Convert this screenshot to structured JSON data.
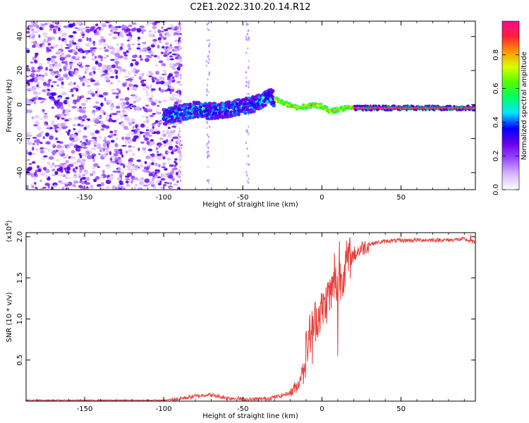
{
  "title": "C2E1.2022.310.20.14.R12",
  "chart_data": [
    {
      "type": "heatmap",
      "xlabel": "Height of straight line (km)",
      "ylabel": "Frequency (Hz)",
      "xlim": [
        -187,
        97
      ],
      "ylim": [
        -50,
        49
      ],
      "xticks": [
        -150,
        -100,
        -50,
        0,
        50
      ],
      "yticks": [
        -40,
        -20,
        0,
        20,
        40
      ],
      "colorbar": {
        "label": "Normalized spectral amplitude",
        "range": [
          0.0,
          1.0
        ],
        "ticks": [
          0.0,
          0.2,
          0.4,
          0.6,
          0.8
        ],
        "tick_labels": [
          "0.0",
          "0.2",
          "0.4",
          "0.6",
          "0.8"
        ],
        "colormap": [
          "#ffffff",
          "#d8b8ff",
          "#9a4dff",
          "#6a00e8",
          "#0000ff",
          "#00e5ff",
          "#00ff66",
          "#4dff00",
          "#d8ff00",
          "#ff9900",
          "#ff1e3c",
          "#ff0a8c"
        ]
      },
      "signal_trace": [
        {
          "x": -98,
          "y": -7
        },
        {
          "x": -90,
          "y": -5
        },
        {
          "x": -80,
          "y": -3
        },
        {
          "x": -70,
          "y": -4
        },
        {
          "x": -60,
          "y": -3
        },
        {
          "x": -50,
          "y": -1
        },
        {
          "x": -40,
          "y": 1
        },
        {
          "x": -33,
          "y": 5
        },
        {
          "x": -25,
          "y": 1
        },
        {
          "x": -15,
          "y": -2
        },
        {
          "x": -5,
          "y": 0
        },
        {
          "x": 0,
          "y": -1
        },
        {
          "x": 5,
          "y": -4
        },
        {
          "x": 15,
          "y": -2
        },
        {
          "x": 50,
          "y": -2
        },
        {
          "x": 95,
          "y": -2
        }
      ],
      "noise_region_x": [
        -187,
        -95
      ]
    },
    {
      "type": "line",
      "xlabel": "Height of straight line (km)",
      "ylabel": "SNR (10 * v/v)",
      "axis_multiplier": "(x10",
      "axis_multiplier_exp": "4",
      "axis_multiplier_close": ")",
      "xlim": [
        -187,
        97
      ],
      "ylim": [
        0,
        2.05
      ],
      "xticks": [
        -150,
        -100,
        -50,
        0,
        50
      ],
      "yticks": [
        0.5,
        1.0,
        1.5,
        2.0
      ],
      "ytick_labels": [
        "0.5",
        "1.0",
        "1.5",
        "2.0"
      ],
      "color": "#e8403c",
      "series_outline": [
        {
          "x": -187,
          "y": 0.01
        },
        {
          "x": -100,
          "y": 0.01
        },
        {
          "x": -90,
          "y": 0.03
        },
        {
          "x": -80,
          "y": 0.06
        },
        {
          "x": -72,
          "y": 0.08
        },
        {
          "x": -60,
          "y": 0.04
        },
        {
          "x": -45,
          "y": 0.02
        },
        {
          "x": -35,
          "y": 0.03
        },
        {
          "x": -27,
          "y": 0.06
        },
        {
          "x": -20,
          "y": 0.1
        },
        {
          "x": -15,
          "y": 0.2
        },
        {
          "x": -12,
          "y": 0.4
        },
        {
          "x": -8,
          "y": 0.8
        },
        {
          "x": -4,
          "y": 1.0
        },
        {
          "x": 0,
          "y": 1.1
        },
        {
          "x": 4,
          "y": 1.25
        },
        {
          "x": 8,
          "y": 1.4
        },
        {
          "x": 12,
          "y": 1.5
        },
        {
          "x": 16,
          "y": 1.7
        },
        {
          "x": 20,
          "y": 1.78
        },
        {
          "x": 26,
          "y": 1.87
        },
        {
          "x": 32,
          "y": 1.92
        },
        {
          "x": 42,
          "y": 1.95
        },
        {
          "x": 60,
          "y": 1.96
        },
        {
          "x": 80,
          "y": 1.96
        },
        {
          "x": 90,
          "y": 1.97
        },
        {
          "x": 97,
          "y": 1.93
        }
      ],
      "spikes": [
        {
          "x": 4,
          "y": 1.45
        },
        {
          "x": 8,
          "y": 1.8
        },
        {
          "x": 10,
          "y": 0.55
        },
        {
          "x": 11,
          "y": 1.95
        },
        {
          "x": -6,
          "y": 0.45
        },
        {
          "x": 94,
          "y": 2.03
        }
      ]
    }
  ]
}
